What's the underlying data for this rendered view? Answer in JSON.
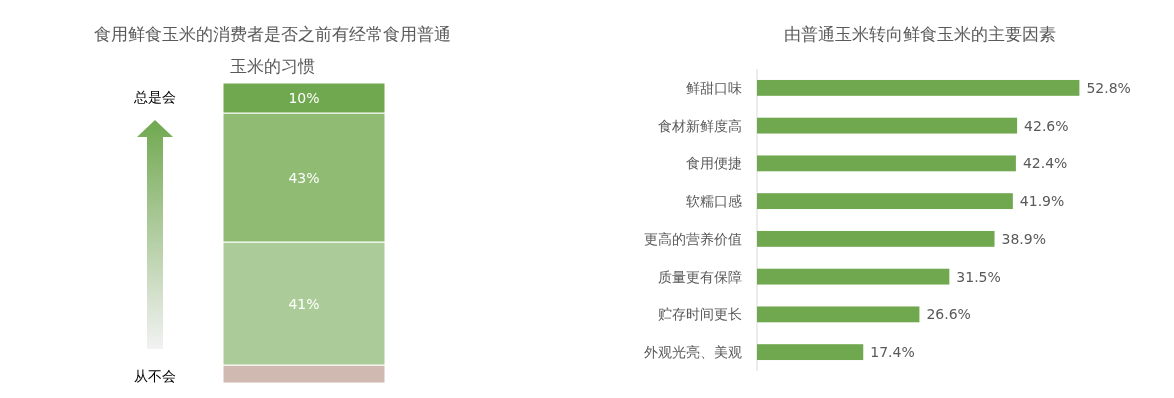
{
  "chart_data": [
    {
      "type": "bar",
      "title": "食用鲜食玉米的消费者是否之前有经常食用普通玉米的习惯",
      "stacked": true,
      "categories": [
        null
      ],
      "ylim": [
        0,
        100
      ],
      "tick_labels": false,
      "annotations": [
        "总是会",
        "从不会"
      ],
      "series": [
        {
          "color": "#d0b9b0",
          "values": [
            6
          ],
          "value_labels": [
            null
          ]
        },
        {
          "color": "#abcc98",
          "values": [
            41
          ],
          "value_labels": [
            "41%"
          ]
        },
        {
          "color": "#8fbb72",
          "values": [
            43
          ],
          "value_labels": [
            "43%"
          ]
        },
        {
          "color": "#70a84f",
          "values": [
            10
          ],
          "value_labels": [
            "10%"
          ]
        }
      ]
    },
    {
      "type": "bar",
      "orientation": "horizontal",
      "title": "由普通玉米转向鲜食玉米的主要因素",
      "categories": [
        "鲜甜口味",
        "食材新鲜度高",
        "食用便捷",
        "软糯口感",
        "更高的营养价值",
        "质量更有保障",
        "贮存时间更长",
        "外观光亮、美观"
      ],
      "values": [
        52.8,
        42.6,
        42.4,
        41.9,
        38.9,
        31.5,
        26.6,
        17.4
      ],
      "color": "#70a84f",
      "tick_labels": "y",
      "value_labels": [
        "52.8%",
        "42.6%",
        "42.4%",
        "41.9%",
        "38.9%",
        "31.5%",
        "26.6%",
        "17.4%"
      ]
    }
  ]
}
